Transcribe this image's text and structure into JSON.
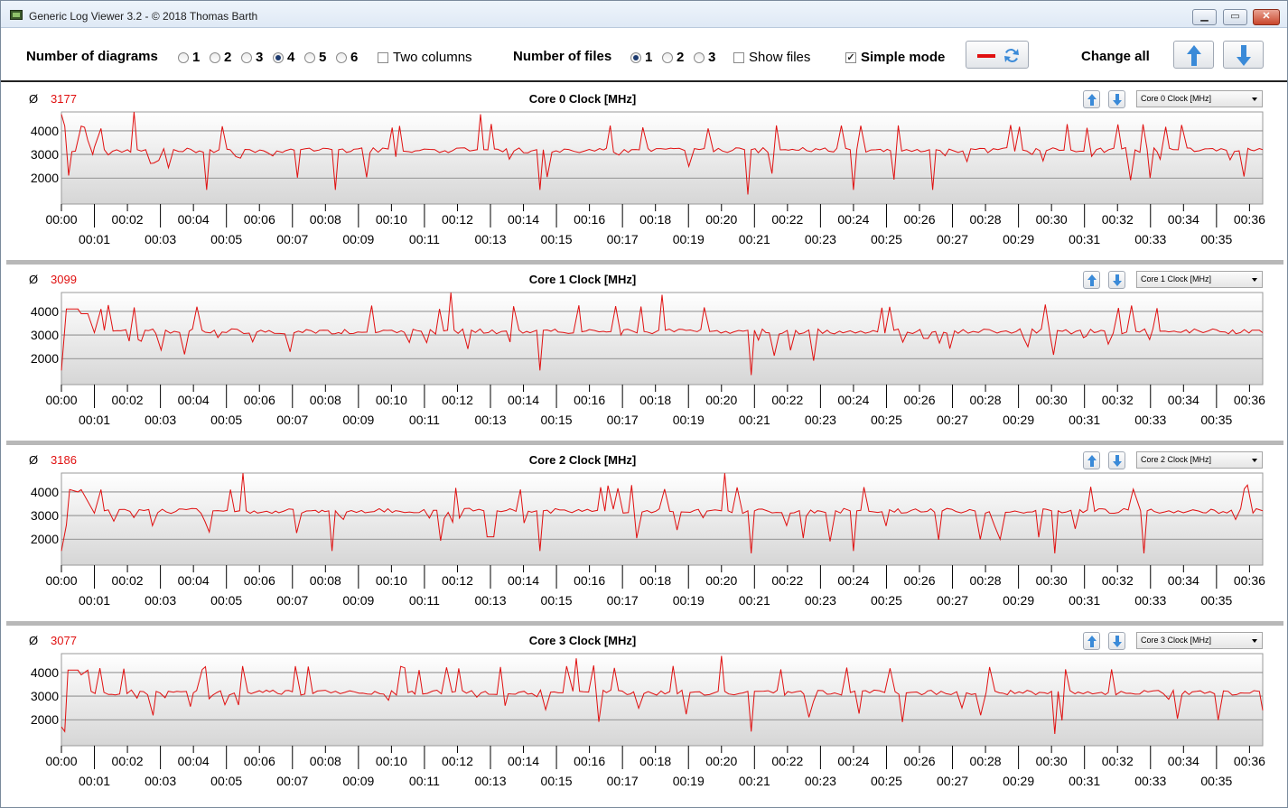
{
  "window": {
    "title": "Generic Log Viewer 3.2 - © 2018 Thomas Barth",
    "minimize": "▭",
    "maximize": "▭",
    "close": "✕"
  },
  "toolbar": {
    "diagrams_label": "Number of diagrams",
    "diagram_options": [
      "1",
      "2",
      "3",
      "4",
      "5",
      "6"
    ],
    "diagrams_selected": "4",
    "two_columns": "Two columns",
    "files_label": "Number of files",
    "file_options": [
      "1",
      "2",
      "3"
    ],
    "files_selected": "1",
    "show_files": "Show files",
    "simple_mode": "Simple mode",
    "change_all": "Change all",
    "accent_color": "#e01010",
    "button_icon_color": "#3a8ad8"
  },
  "chart_data": [
    {
      "type": "line",
      "title": "Core 0 Clock [MHz]",
      "avg_symbol": "Ø",
      "average": "3177",
      "selector": "Core 0 Clock [MHz]",
      "yticks": [
        2000,
        3000,
        4000
      ],
      "ylim": [
        900,
        4800
      ],
      "xlim": [
        0,
        36.4
      ],
      "xticks_top": [
        "00:00",
        "00:02",
        "00:04",
        "00:06",
        "00:08",
        "00:10",
        "00:12",
        "00:14",
        "00:16",
        "00:18",
        "00:20",
        "00:22",
        "00:24",
        "00:26",
        "00:28",
        "00:30",
        "00:32",
        "00:34",
        "00:36"
      ],
      "xticks_bottom": [
        "00:01",
        "00:03",
        "00:05",
        "00:07",
        "00:09",
        "00:11",
        "00:13",
        "00:15",
        "00:17",
        "00:19",
        "00:21",
        "00:23",
        "00:25",
        "00:27",
        "00:29",
        "00:31",
        "00:33",
        "00:35"
      ],
      "series": [
        {
          "color": "#e01010",
          "base": 3180,
          "seed": 11,
          "points": [
            [
              0.0,
              4700
            ],
            [
              0.1,
              4200
            ],
            [
              0.6,
              4200
            ],
            [
              0.7,
              4150
            ],
            [
              0.8,
              3600
            ],
            [
              0.9,
              3200
            ],
            [
              0.95,
              3000
            ],
            [
              1.0,
              3300
            ],
            [
              1.2,
              4100
            ],
            [
              1.3,
              3200
            ],
            [
              2.0,
              3200
            ],
            [
              2.1,
              3100
            ],
            [
              2.2,
              4800
            ],
            [
              2.3,
              3200
            ],
            [
              4.3,
              3100
            ],
            [
              4.4,
              1500
            ],
            [
              4.5,
              3200
            ],
            [
              8.2,
              3200
            ],
            [
              8.3,
              1500
            ],
            [
              8.4,
              3200
            ],
            [
              12.6,
              3200
            ],
            [
              12.7,
              4700
            ],
            [
              12.8,
              3200
            ],
            [
              14.4,
              3200
            ],
            [
              14.5,
              1500
            ],
            [
              14.6,
              3200
            ],
            [
              20.7,
              3200
            ],
            [
              20.8,
              1300
            ],
            [
              20.9,
              3200
            ],
            [
              23.9,
              3200
            ],
            [
              24.0,
              1500
            ],
            [
              24.1,
              3200
            ],
            [
              26.3,
              3200
            ],
            [
              26.4,
              1500
            ],
            [
              26.5,
              3200
            ],
            [
              36.4,
              3200
            ]
          ]
        }
      ]
    },
    {
      "type": "line",
      "title": "Core 1 Clock [MHz]",
      "avg_symbol": "Ø",
      "average": "3099",
      "selector": "Core 1 Clock [MHz]",
      "yticks": [
        2000,
        3000,
        4000
      ],
      "ylim": [
        900,
        4800
      ],
      "xlim": [
        0,
        36.4
      ],
      "xticks_top": [
        "00:00",
        "00:02",
        "00:04",
        "00:06",
        "00:08",
        "00:10",
        "00:12",
        "00:14",
        "00:16",
        "00:18",
        "00:20",
        "00:22",
        "00:24",
        "00:26",
        "00:28",
        "00:30",
        "00:32",
        "00:34",
        "00:36"
      ],
      "xticks_bottom": [
        "00:01",
        "00:03",
        "00:05",
        "00:07",
        "00:09",
        "00:11",
        "00:13",
        "00:15",
        "00:17",
        "00:19",
        "00:21",
        "00:23",
        "00:25",
        "00:27",
        "00:29",
        "00:31",
        "00:33",
        "00:35"
      ],
      "series": [
        {
          "color": "#e01010",
          "base": 3150,
          "seed": 23,
          "points": [
            [
              0.0,
              1500
            ],
            [
              0.15,
              4100
            ],
            [
              0.5,
              4100
            ],
            [
              0.6,
              3900
            ],
            [
              0.8,
              3900
            ],
            [
              1.0,
              3100
            ],
            [
              1.2,
              4100
            ],
            [
              1.3,
              3200
            ],
            [
              11.7,
              3200
            ],
            [
              11.8,
              4800
            ],
            [
              11.9,
              3200
            ],
            [
              14.4,
              3200
            ],
            [
              14.5,
              1500
            ],
            [
              14.6,
              3200
            ],
            [
              18.1,
              3200
            ],
            [
              18.2,
              4700
            ],
            [
              18.3,
              3200
            ],
            [
              20.8,
              3200
            ],
            [
              20.9,
              1300
            ],
            [
              21.0,
              3200
            ],
            [
              36.3,
              3200
            ],
            [
              36.4,
              3100
            ]
          ]
        }
      ]
    },
    {
      "type": "line",
      "title": "Core 2 Clock [MHz]",
      "avg_symbol": "Ø",
      "average": "3186",
      "selector": "Core 2 Clock [MHz]",
      "yticks": [
        2000,
        3000,
        4000
      ],
      "ylim": [
        900,
        4800
      ],
      "xlim": [
        0,
        36.4
      ],
      "xticks_top": [
        "00:00",
        "00:02",
        "00:04",
        "00:06",
        "00:08",
        "00:10",
        "00:12",
        "00:14",
        "00:16",
        "00:18",
        "00:20",
        "00:22",
        "00:24",
        "00:26",
        "00:28",
        "00:30",
        "00:32",
        "00:34",
        "00:36"
      ],
      "xticks_bottom": [
        "00:01",
        "00:03",
        "00:05",
        "00:07",
        "00:09",
        "00:11",
        "00:13",
        "00:15",
        "00:17",
        "00:19",
        "00:21",
        "00:23",
        "00:25",
        "00:27",
        "00:29",
        "00:31",
        "00:33",
        "00:35"
      ],
      "series": [
        {
          "color": "#e01010",
          "base": 3200,
          "seed": 37,
          "points": [
            [
              0.0,
              1500
            ],
            [
              0.15,
              2600
            ],
            [
              0.25,
              4100
            ],
            [
              0.5,
              4000
            ],
            [
              0.6,
              4100
            ],
            [
              0.8,
              3600
            ],
            [
              1.0,
              3100
            ],
            [
              1.2,
              4100
            ],
            [
              1.3,
              3200
            ],
            [
              5.4,
              3200
            ],
            [
              5.5,
              4800
            ],
            [
              5.6,
              3200
            ],
            [
              8.1,
              3200
            ],
            [
              8.2,
              1500
            ],
            [
              8.3,
              3200
            ],
            [
              12.8,
              3200
            ],
            [
              12.9,
              2100
            ],
            [
              13.1,
              2100
            ],
            [
              13.2,
              3200
            ],
            [
              14.4,
              3200
            ],
            [
              14.5,
              1500
            ],
            [
              14.6,
              3200
            ],
            [
              20.0,
              3200
            ],
            [
              20.1,
              4800
            ],
            [
              20.2,
              3200
            ],
            [
              20.8,
              3200
            ],
            [
              20.9,
              1400
            ],
            [
              21.0,
              3200
            ],
            [
              23.9,
              3200
            ],
            [
              24.0,
              1500
            ],
            [
              24.1,
              3200
            ],
            [
              30.0,
              3200
            ],
            [
              30.1,
              1400
            ],
            [
              30.2,
              3200
            ],
            [
              32.7,
              3200
            ],
            [
              32.8,
              1400
            ],
            [
              32.9,
              3200
            ],
            [
              36.4,
              3200
            ]
          ]
        }
      ]
    },
    {
      "type": "line",
      "title": "Core 3 Clock [MHz]",
      "avg_symbol": "Ø",
      "average": "3077",
      "selector": "Core 3 Clock [MHz]",
      "yticks": [
        2000,
        3000,
        4000
      ],
      "ylim": [
        900,
        4800
      ],
      "xlim": [
        0,
        36.4
      ],
      "xticks_top": [
        "00:00",
        "00:02",
        "00:04",
        "00:06",
        "00:08",
        "00:10",
        "00:12",
        "00:14",
        "00:16",
        "00:18",
        "00:20",
        "00:22",
        "00:24",
        "00:26",
        "00:28",
        "00:30",
        "00:32",
        "00:34",
        "00:36"
      ],
      "xticks_bottom": [
        "00:01",
        "00:03",
        "00:05",
        "00:07",
        "00:09",
        "00:11",
        "00:13",
        "00:15",
        "00:17",
        "00:19",
        "00:21",
        "00:23",
        "00:25",
        "00:27",
        "00:29",
        "00:31",
        "00:33",
        "00:35"
      ],
      "series": [
        {
          "color": "#e01010",
          "base": 3150,
          "seed": 53,
          "points": [
            [
              0.0,
              1700
            ],
            [
              0.1,
              1500
            ],
            [
              0.2,
              4100
            ],
            [
              0.5,
              4100
            ],
            [
              0.6,
              3900
            ],
            [
              0.8,
              4100
            ],
            [
              0.9,
              3200
            ],
            [
              15.5,
              3200
            ],
            [
              15.6,
              4600
            ],
            [
              15.7,
              3200
            ],
            [
              19.9,
              3200
            ],
            [
              20.0,
              4700
            ],
            [
              20.1,
              3200
            ],
            [
              20.8,
              3200
            ],
            [
              20.9,
              1500
            ],
            [
              21.0,
              3200
            ],
            [
              30.0,
              3200
            ],
            [
              30.1,
              1400
            ],
            [
              30.2,
              3200
            ],
            [
              36.3,
              3200
            ],
            [
              36.4,
              2400
            ]
          ]
        }
      ]
    }
  ]
}
